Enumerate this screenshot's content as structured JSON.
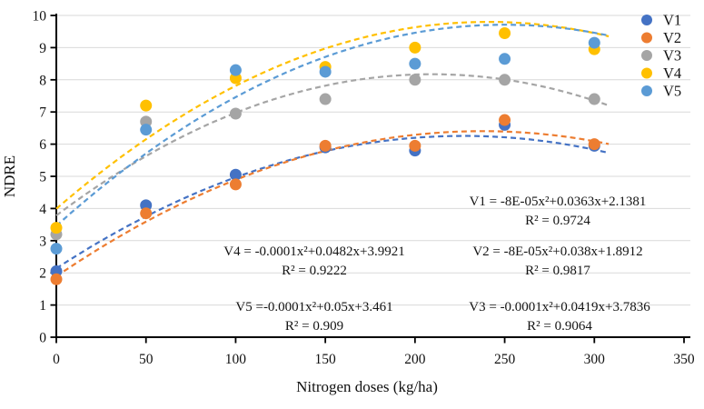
{
  "chart_data": {
    "type": "scatter",
    "title": "",
    "xlabel": "Nitrogen doses (kg/ha)",
    "ylabel": "NDRE",
    "xlim": [
      0,
      350
    ],
    "ylim": [
      0,
      10
    ],
    "x_ticks": [
      "0",
      "50",
      "100",
      "150",
      "200",
      "250",
      "300",
      "350"
    ],
    "y_ticks": [
      "0",
      "1",
      "2",
      "3",
      "4",
      "5",
      "6",
      "7",
      "8",
      "9",
      "10"
    ],
    "grid": "horizontal",
    "grid_color": "#D9D9D9",
    "axis_color": "#000000",
    "legend_position": "top-right",
    "x": [
      0,
      50,
      100,
      150,
      200,
      250,
      300
    ],
    "trend_x_range": [
      0,
      308
    ],
    "series": [
      {
        "name": "V1",
        "color": "#4472C4",
        "values": [
          2.05,
          4.1,
          5.05,
          5.9,
          5.8,
          6.6,
          5.95
        ],
        "trend": {
          "a": -8e-05,
          "b": 0.0363,
          "c": 2.1381
        },
        "equation": "V1 = -8E-05x²+0.0363x+2.1381",
        "r2": "R² = 0.9724"
      },
      {
        "name": "V2",
        "color": "#ED7D31",
        "values": [
          1.8,
          3.85,
          4.75,
          5.95,
          5.95,
          6.75,
          6.0
        ],
        "trend": {
          "a": -8e-05,
          "b": 0.038,
          "c": 1.8912
        },
        "equation": "V2 = -8E-05x²+0.038x+1.8912",
        "r2": "R² = 0.9817"
      },
      {
        "name": "V3",
        "color": "#A5A5A5",
        "values": [
          3.2,
          6.7,
          6.95,
          7.4,
          8.0,
          8.0,
          7.4
        ],
        "trend": {
          "a": -0.0001,
          "b": 0.0419,
          "c": 3.7836
        },
        "equation": "V3 = -0.0001x²+0.0419x+3.7836",
        "r2": "R² = 0.9064"
      },
      {
        "name": "V4",
        "color": "#FFC000",
        "values": [
          3.4,
          7.2,
          8.05,
          8.4,
          9.0,
          9.45,
          8.95
        ],
        "trend": {
          "a": -0.0001,
          "b": 0.0482,
          "c": 3.9921
        },
        "equation": "V4 = -0.0001x²+0.0482x+3.9921",
        "r2": "R² = 0.9222"
      },
      {
        "name": "V5",
        "color": "#5B9BD5",
        "values": [
          2.75,
          6.45,
          8.3,
          8.25,
          8.5,
          8.65,
          9.15
        ],
        "trend": {
          "a": -0.0001,
          "b": 0.05,
          "c": 3.461
        },
        "equation": "V5 =-0.0001x²+0.05x+3.461",
        "r2": "R² = 0.909"
      }
    ]
  }
}
